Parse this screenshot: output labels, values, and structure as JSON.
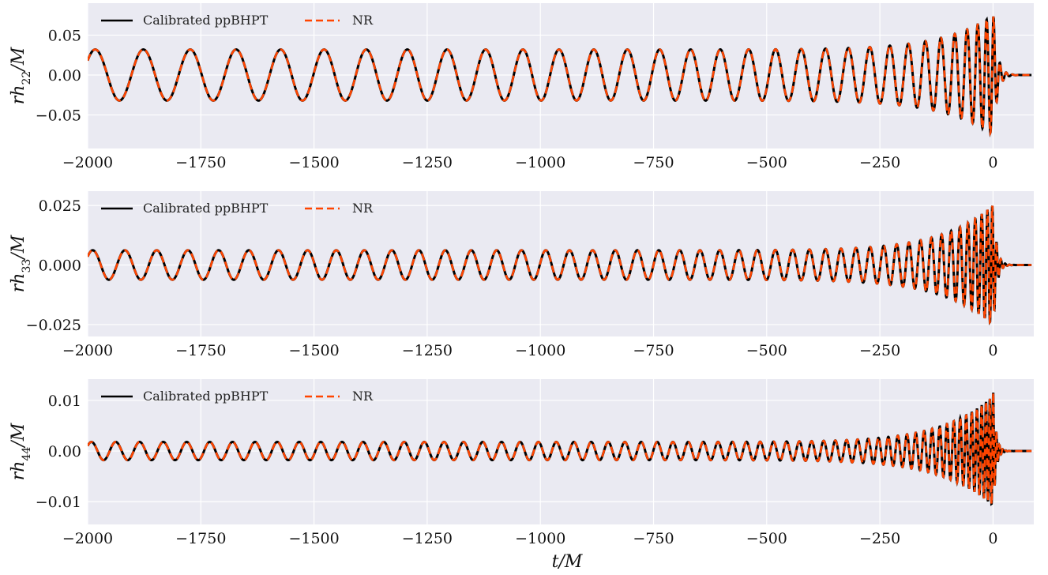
{
  "chart_data": [
    {
      "type": "line",
      "ylabel_main": "rh",
      "ylabel_sub": "22",
      "ylabel_tail": "/M",
      "xlim": [
        -2000,
        90
      ],
      "ylim": [
        -0.092,
        0.09
      ],
      "xticks": [
        -2000,
        -1750,
        -1500,
        -1250,
        -1000,
        -750,
        -500,
        -250,
        0
      ],
      "xtick_labels": [
        "−2000",
        "−1750",
        "−1500",
        "−1250",
        "−1000",
        "−750",
        "−500",
        "−250",
        "0"
      ],
      "yticks": [
        -0.05,
        0.0,
        0.05
      ],
      "ytick_labels": [
        "−0.05",
        "0.00",
        "0.05"
      ],
      "grid": true,
      "legend_position": "top-left",
      "waveform": {
        "initial_amplitude": 0.032,
        "peak_amplitude": 0.083,
        "initial_period": 108,
        "final_period": 14,
        "cycles": 28,
        "ringdown_decay": 9
      },
      "series": [
        {
          "name": "Calibrated ppBHPT",
          "color": "#000000",
          "style": "solid"
        },
        {
          "name": "NR",
          "color": "#ff4500",
          "style": "dashed"
        }
      ]
    },
    {
      "type": "line",
      "ylabel_main": "rh",
      "ylabel_sub": "33",
      "ylabel_tail": "/M",
      "xlim": [
        -2000,
        90
      ],
      "ylim": [
        -0.03,
        0.031
      ],
      "xticks": [
        -2000,
        -1750,
        -1500,
        -1250,
        -1000,
        -750,
        -500,
        -250,
        0
      ],
      "xtick_labels": [
        "−2000",
        "−1750",
        "−1500",
        "−1250",
        "−1000",
        "−750",
        "−500",
        "−250",
        "0"
      ],
      "yticks": [
        -0.025,
        0.0,
        0.025
      ],
      "ytick_labels": [
        "−0.025",
        "0.000",
        "0.025"
      ],
      "grid": true,
      "legend_position": "top-left",
      "waveform": {
        "initial_amplitude": 0.0062,
        "peak_amplitude": 0.029,
        "initial_period": 72,
        "final_period": 9.5,
        "cycles": 42,
        "ringdown_decay": 7
      },
      "series": [
        {
          "name": "Calibrated ppBHPT",
          "color": "#000000",
          "style": "solid"
        },
        {
          "name": "NR",
          "color": "#ff4500",
          "style": "dashed"
        }
      ]
    },
    {
      "type": "line",
      "ylabel_main": "rh",
      "ylabel_sub": "44",
      "ylabel_tail": "/M",
      "xlim": [
        -2000,
        90
      ],
      "ylim": [
        -0.0145,
        0.0142
      ],
      "xticks": [
        -2000,
        -1750,
        -1500,
        -1250,
        -1000,
        -750,
        -500,
        -250,
        0
      ],
      "xtick_labels": [
        "−2000",
        "−1750",
        "−1500",
        "−1250",
        "−1000",
        "−750",
        "−500",
        "−250",
        "0"
      ],
      "yticks": [
        -0.01,
        0.0,
        0.01
      ],
      "ytick_labels": [
        "−0.01",
        "0.00",
        "0.01"
      ],
      "grid": true,
      "legend_position": "top-left",
      "waveform": {
        "initial_amplitude": 0.0018,
        "peak_amplitude": 0.0127,
        "initial_period": 54,
        "final_period": 7,
        "cycles": 56,
        "ringdown_decay": 6
      },
      "series": [
        {
          "name": "Calibrated ppBHPT",
          "color": "#000000",
          "style": "solid"
        },
        {
          "name": "NR",
          "color": "#ff4500",
          "style": "dashed"
        }
      ]
    }
  ],
  "xlabel": "t/M",
  "colors": {
    "plot_background": "#eaeaf2",
    "grid": "#ffffff"
  }
}
